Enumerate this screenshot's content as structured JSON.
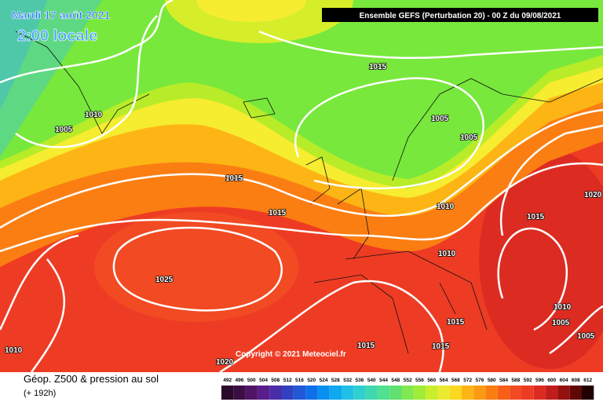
{
  "header": {
    "date": "Mardi 17 août 2021",
    "time": "2:00 locale",
    "run": "Ensemble GEFS  (Perturbation 20)  -  00 Z du 09/08/2021"
  },
  "isobar_labels": [
    "1015",
    "1010",
    "1005",
    "1005",
    "1005",
    "1015",
    "1015",
    "1010",
    "1015",
    "1020",
    "1010",
    "1025",
    "1010",
    "1005",
    "1015",
    "1015",
    "1015",
    "1005",
    "1010",
    "1020"
  ],
  "copyright": "Copyright © 2021 Meteociel.fr",
  "footer": {
    "title": "Géop. Z500 & pression au sol",
    "lead": "(+ 192h)"
  },
  "colorbar_labels": [
    492,
    496,
    500,
    504,
    508,
    512,
    516,
    520,
    524,
    528,
    532,
    536,
    540,
    544,
    548,
    552,
    556,
    560,
    564,
    568,
    572,
    576,
    580,
    584,
    588,
    592,
    596,
    600,
    604,
    608,
    612
  ]
}
